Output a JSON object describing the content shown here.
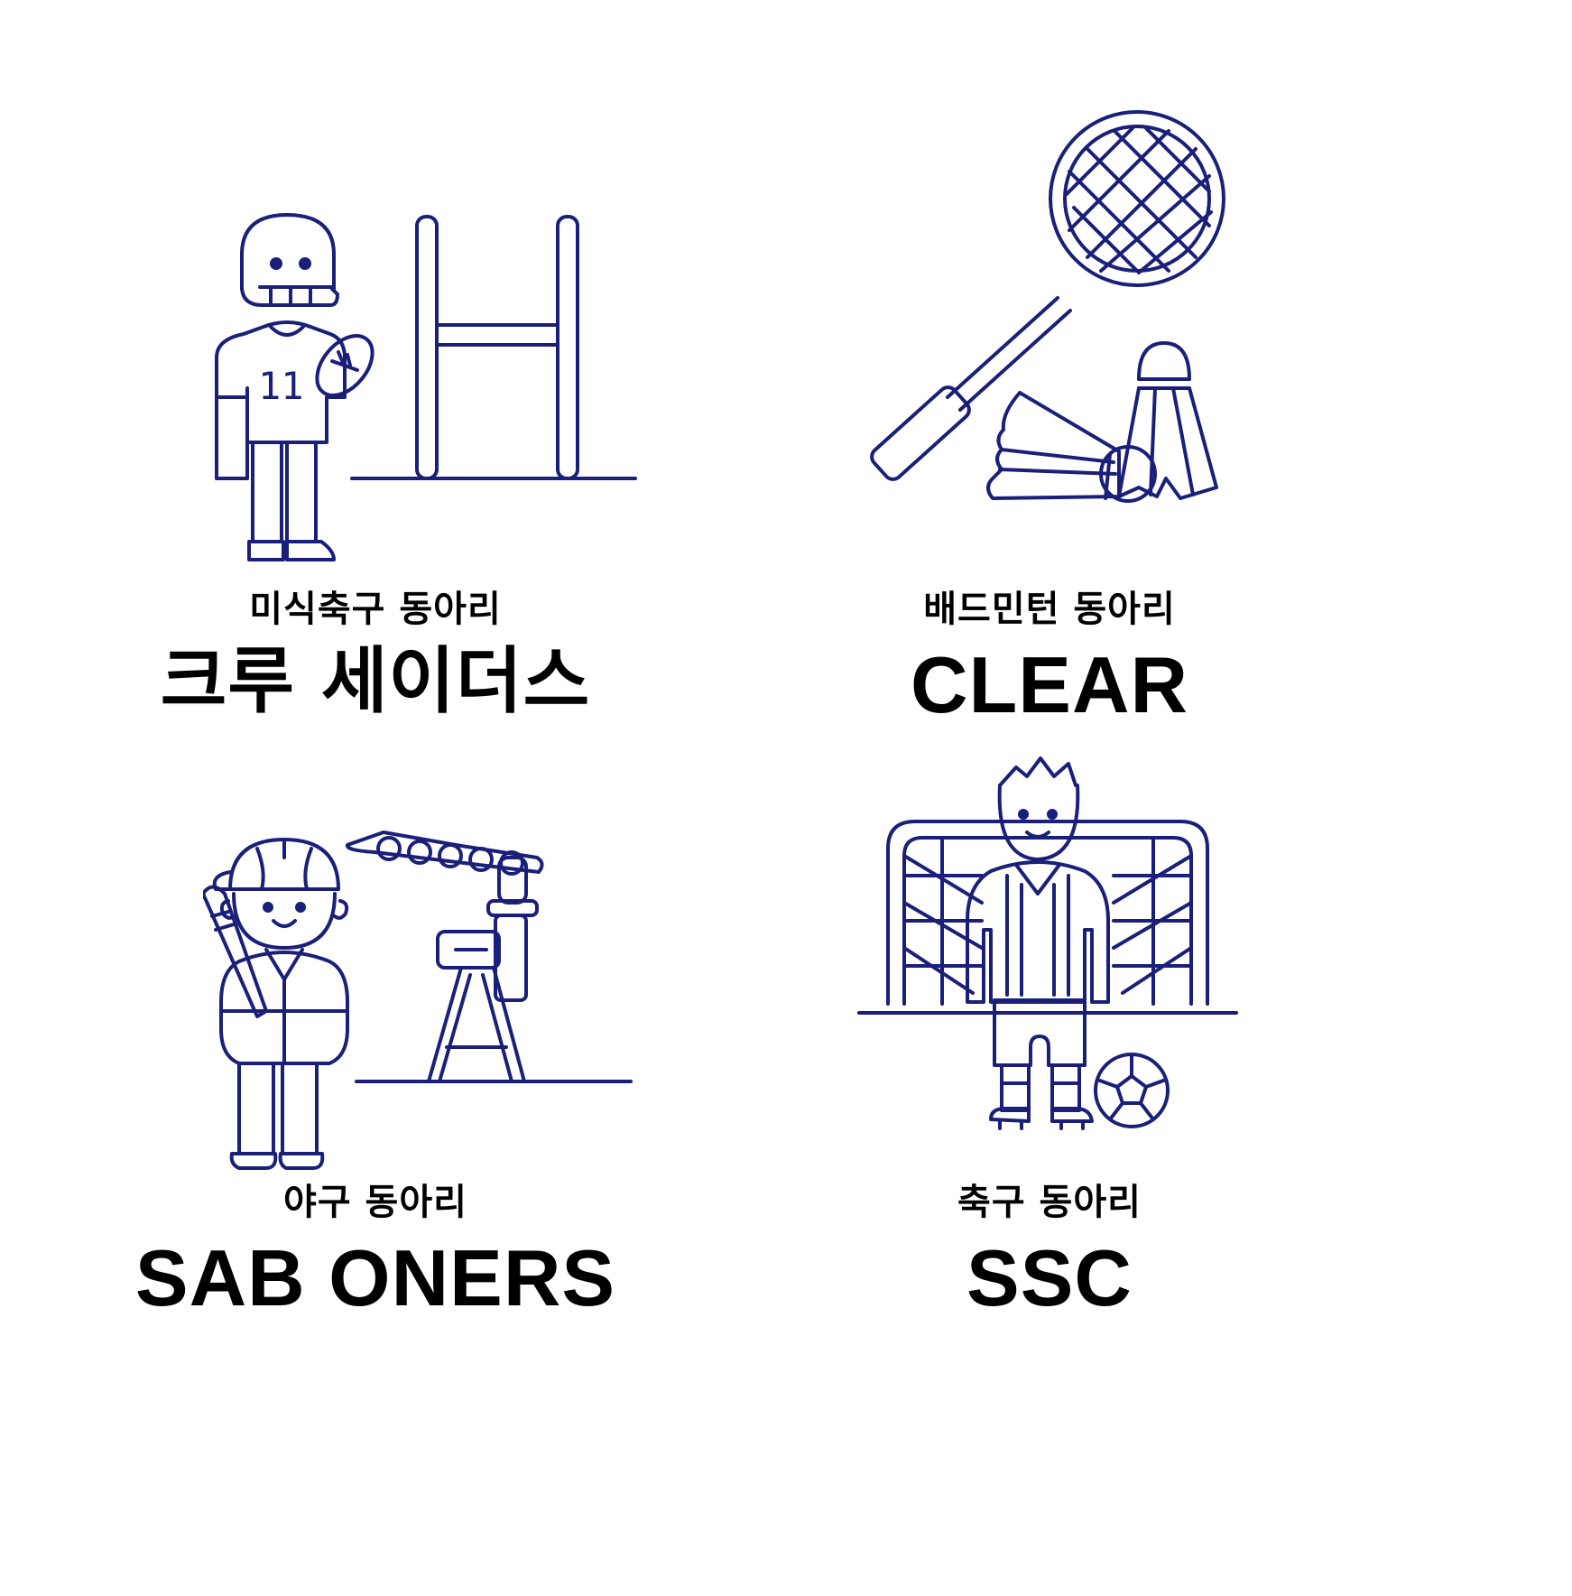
{
  "clubs": [
    {
      "category": "미식축구 동아리",
      "name": "크루 세이더스",
      "icon": "american-football-player-icon"
    },
    {
      "category": "배드민턴 동아리",
      "name": "CLEAR",
      "icon": "badminton-racket-shuttlecock-icon"
    },
    {
      "category": "야구 동아리",
      "name": "SAB ONERS",
      "icon": "baseball-player-pitching-machine-icon"
    },
    {
      "category": "축구 동아리",
      "name": "SSC",
      "icon": "soccer-referee-goal-icon"
    }
  ],
  "football_jersey_number": "11",
  "colors": {
    "line": "#1a1f7a",
    "text": "#000000",
    "background": "#ffffff"
  }
}
